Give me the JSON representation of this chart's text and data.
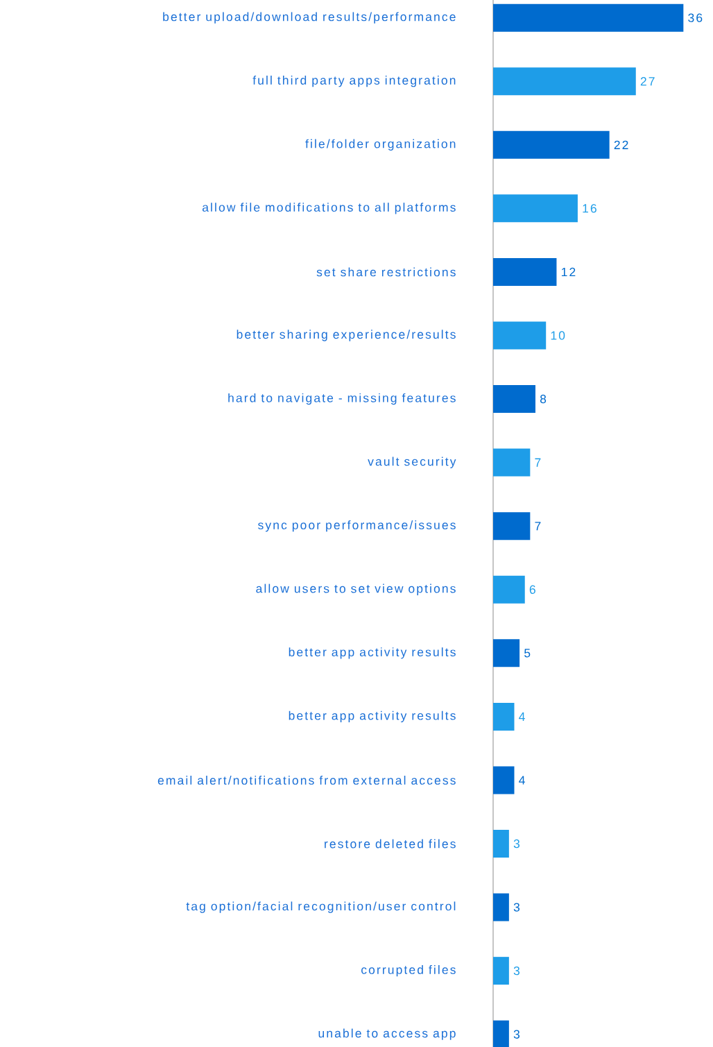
{
  "chart_data": {
    "type": "bar",
    "orientation": "horizontal",
    "data_labels": true,
    "categories": [
      "better upload/download results/performance",
      "full third party apps integration",
      "file/folder organization",
      "allow file modifications to all platforms",
      "set share restrictions",
      "better sharing experience/results",
      "hard to navigate - missing features",
      "vault security",
      "sync poor performance/issues",
      "allow users to set view options",
      "better app activity results",
      "better app activity results",
      "email alert/notifications from external access",
      "restore deleted files",
      "tag option/facial recognition/user control",
      "corrupted files",
      "unable to access app"
    ],
    "values": [
      36,
      27,
      22,
      16,
      12,
      10,
      8,
      7,
      7,
      6,
      5,
      4,
      4,
      3,
      3,
      3,
      3
    ],
    "colors": [
      "#006bce",
      "#1e9de8",
      "#006bce",
      "#1e9de8",
      "#006bce",
      "#1e9de8",
      "#006bce",
      "#1e9de8",
      "#006bce",
      "#1e9de8",
      "#006bce",
      "#1e9de8",
      "#006bce",
      "#1e9de8",
      "#006bce",
      "#1e9de8",
      "#006bce"
    ]
  }
}
